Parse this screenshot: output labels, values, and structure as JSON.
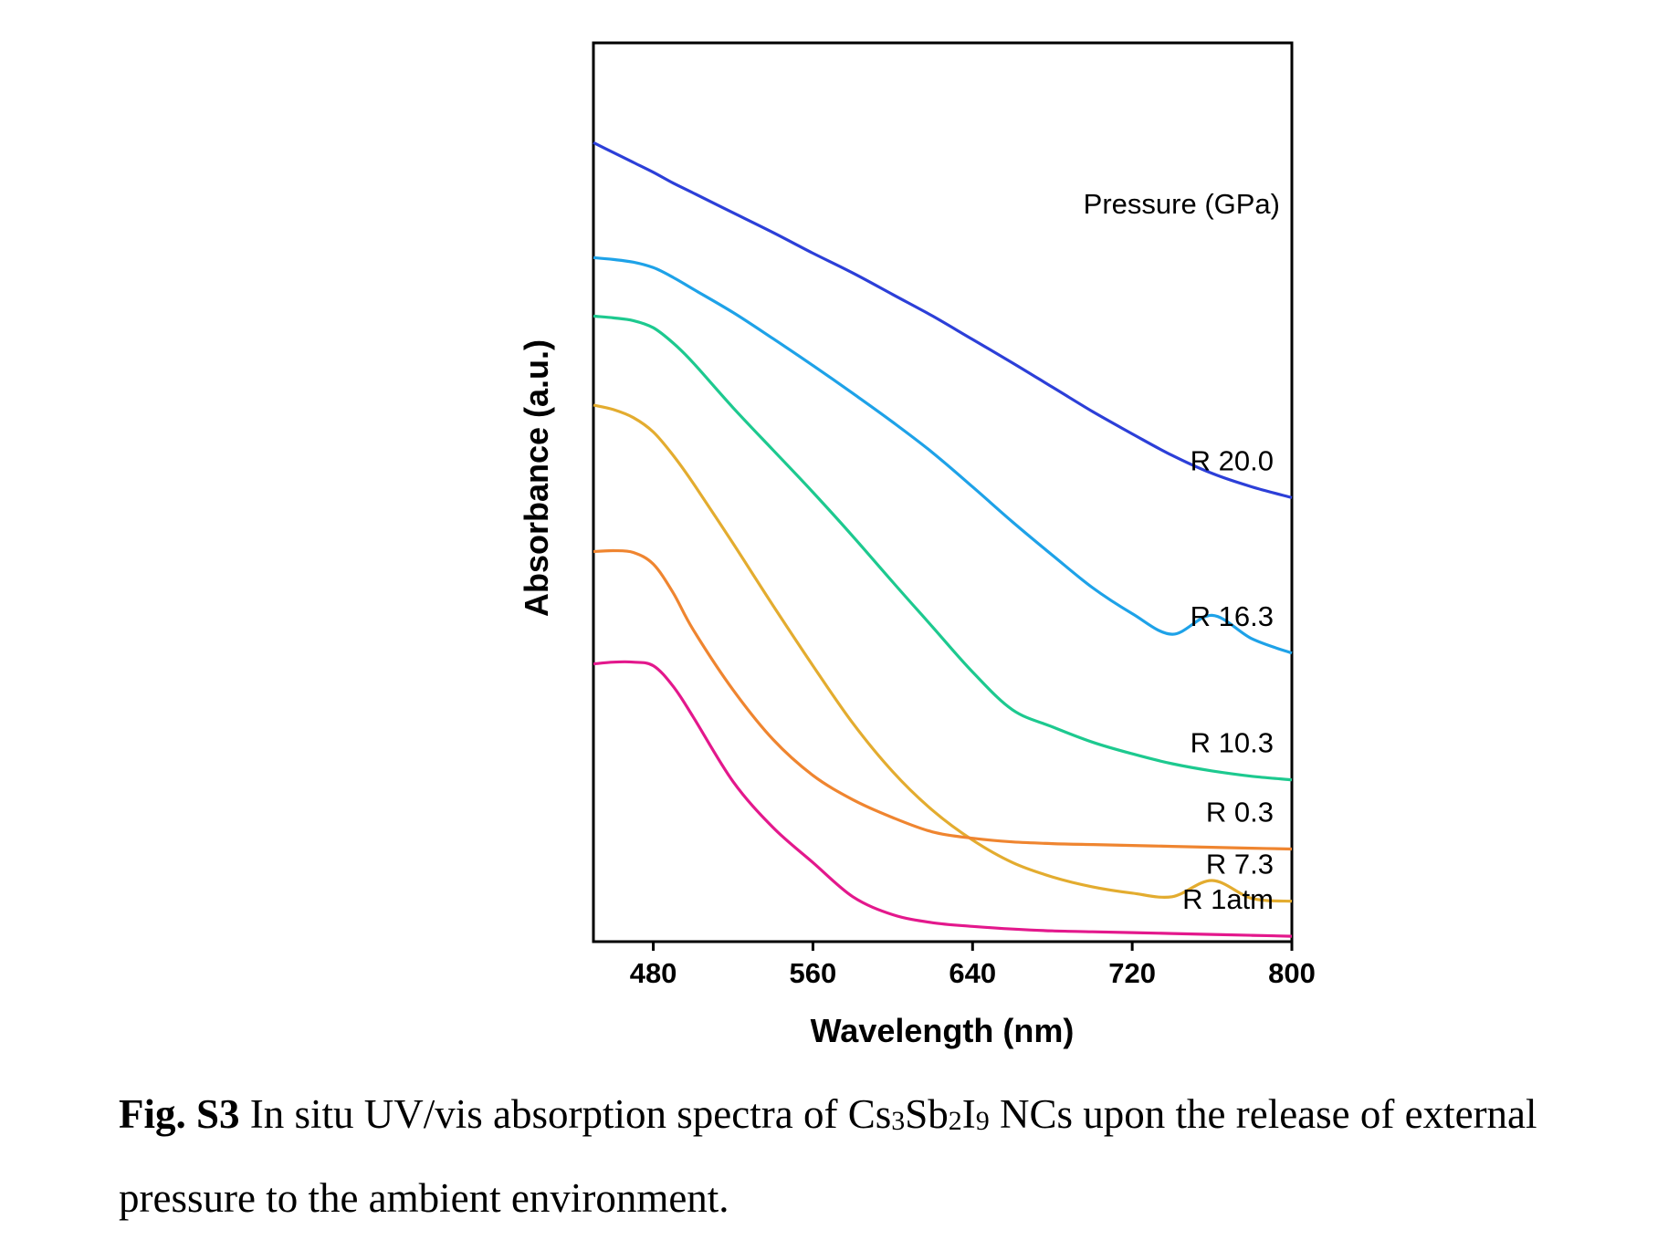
{
  "chart_data": {
    "type": "line",
    "xlabel": "Wavelength (nm)",
    "ylabel": "Absorbance (a.u.)",
    "xlim": [
      450,
      800
    ],
    "ylim": [
      0,
      1
    ],
    "xticks": [
      480,
      560,
      640,
      720,
      800
    ],
    "yticks": [],
    "grid": false,
    "legend_title": "Pressure (GPa)",
    "legend_placement": "inline labels at right end of each curve",
    "colors": {
      "R 20.0": "#2c3fd8",
      "R 16.3": "#1ea2e8",
      "R 10.3": "#1dc98f",
      "R 7.3": "#e3ac2f",
      "R 0.3": "#ef8530",
      "R 1atm": "#e3188c"
    },
    "x": [
      450,
      460,
      470,
      480,
      490,
      500,
      520,
      540,
      560,
      580,
      600,
      620,
      640,
      660,
      680,
      700,
      720,
      740,
      760,
      780,
      800
    ],
    "series": [
      {
        "name": "R 20.0",
        "values": [
          0.889,
          0.878,
          0.867,
          0.856,
          0.844,
          0.833,
          0.811,
          0.789,
          0.766,
          0.744,
          0.72,
          0.696,
          0.67,
          0.644,
          0.617,
          0.59,
          0.565,
          0.541,
          0.521,
          0.506,
          0.494
        ]
      },
      {
        "name": "R 16.3",
        "values": [
          0.761,
          0.759,
          0.756,
          0.75,
          0.739,
          0.726,
          0.7,
          0.671,
          0.641,
          0.61,
          0.578,
          0.544,
          0.506,
          0.467,
          0.43,
          0.394,
          0.365,
          0.342,
          0.363,
          0.337,
          0.321
        ]
      },
      {
        "name": "R 10.3",
        "values": [
          0.696,
          0.694,
          0.691,
          0.683,
          0.666,
          0.644,
          0.594,
          0.547,
          0.5,
          0.451,
          0.4,
          0.35,
          0.3,
          0.258,
          0.239,
          0.222,
          0.209,
          0.198,
          0.19,
          0.184,
          0.18
        ]
      },
      {
        "name": "R 7.3",
        "values": [
          0.597,
          0.592,
          0.583,
          0.567,
          0.541,
          0.51,
          0.443,
          0.374,
          0.307,
          0.243,
          0.189,
          0.146,
          0.113,
          0.088,
          0.072,
          0.061,
          0.054,
          0.05,
          0.068,
          0.048,
          0.045
        ]
      },
      {
        "name": "R 0.3",
        "values": [
          0.434,
          0.435,
          0.433,
          0.42,
          0.388,
          0.347,
          0.28,
          0.225,
          0.185,
          0.158,
          0.138,
          0.122,
          0.115,
          0.111,
          0.109,
          0.108,
          0.107,
          0.106,
          0.105,
          0.104,
          0.103
        ]
      },
      {
        "name": "R 1atm",
        "values": [
          0.309,
          0.311,
          0.311,
          0.307,
          0.284,
          0.25,
          0.178,
          0.127,
          0.088,
          0.05,
          0.03,
          0.021,
          0.017,
          0.014,
          0.012,
          0.011,
          0.01,
          0.009,
          0.008,
          0.007,
          0.006
        ]
      }
    ]
  },
  "caption": {
    "label": "Fig. S3",
    "text_before_formula": " In situ UV/vis absorption spectra of ",
    "formula": {
      "cs": "Cs",
      "cs_sub": "3",
      "sb": "Sb",
      "sb_sub": "2",
      "i": "I",
      "i_sub": "9"
    },
    "text_after_formula": " NCs upon the release of external pressure to the ambient environment."
  }
}
